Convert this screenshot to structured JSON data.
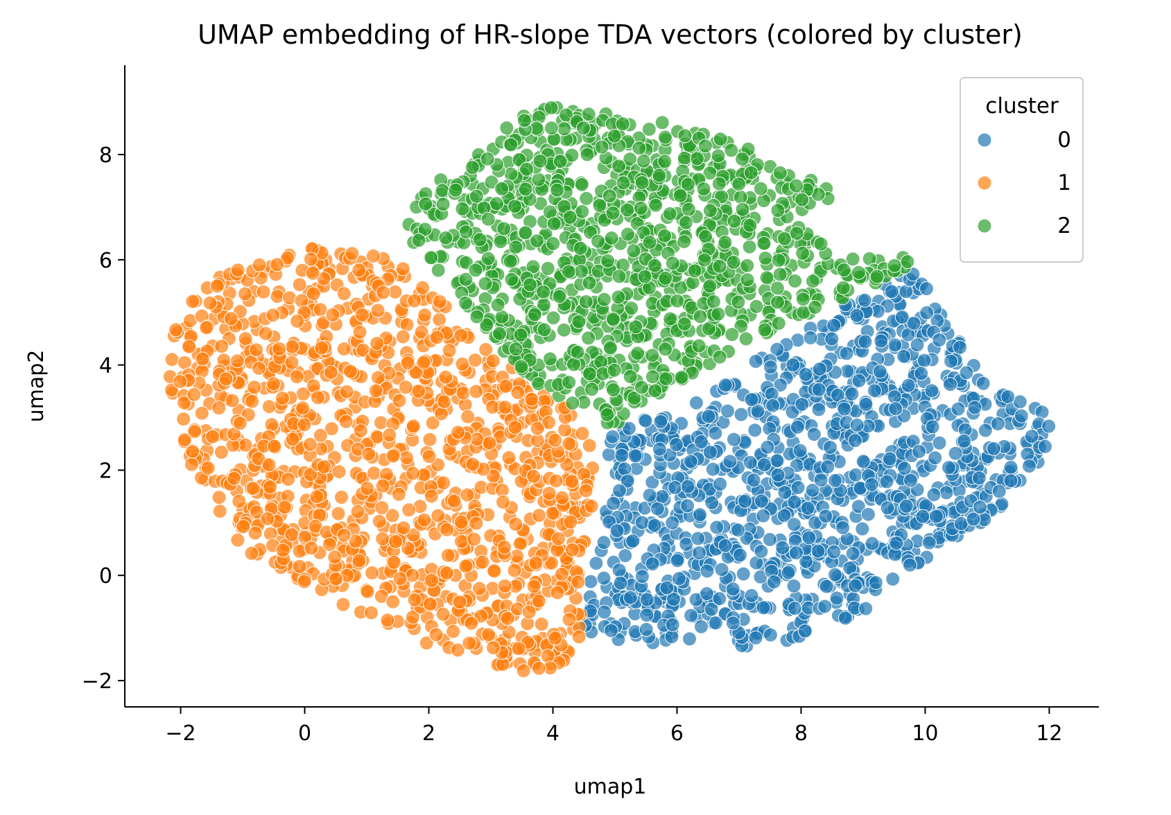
{
  "chart_data": {
    "type": "scatter",
    "title": "UMAP embedding of HR-slope TDA vectors (colored by cluster)",
    "xlabel": "umap1",
    "ylabel": "umap2",
    "xlim": [
      -2.9,
      12.8
    ],
    "ylim": [
      -2.5,
      9.7
    ],
    "xticks": [
      -2,
      0,
      2,
      4,
      6,
      8,
      10,
      12
    ],
    "yticks": [
      -2,
      0,
      2,
      4,
      6,
      8
    ],
    "xtick_labels": [
      "−2",
      "0",
      "2",
      "4",
      "6",
      "8",
      "10",
      "12"
    ],
    "ytick_labels": [
      "−2",
      "0",
      "2",
      "4",
      "6",
      "8"
    ],
    "grid": false,
    "legend": {
      "title": "cluster",
      "placement": "top-right",
      "entries": [
        {
          "label": "0",
          "color": "#1f77b4"
        },
        {
          "label": "1",
          "color": "#ff7f0e"
        },
        {
          "label": "2",
          "color": "#2ca02c"
        }
      ]
    },
    "series": [
      {
        "name": "0",
        "color": "#1f77b4",
        "approx_count": 1100,
        "region": [
          [
            4.7,
            2.8
          ],
          [
            5.2,
            2.9
          ],
          [
            6.2,
            3.2
          ],
          [
            7.0,
            3.9
          ],
          [
            7.6,
            4.3
          ],
          [
            8.3,
            4.9
          ],
          [
            9.3,
            5.6
          ],
          [
            9.8,
            5.9
          ],
          [
            10.3,
            4.9
          ],
          [
            10.8,
            4.0
          ],
          [
            11.4,
            3.4
          ],
          [
            12.1,
            3.0
          ],
          [
            11.8,
            2.0
          ],
          [
            11.3,
            1.3
          ],
          [
            10.5,
            0.7
          ],
          [
            9.6,
            0.0
          ],
          [
            8.9,
            -0.8
          ],
          [
            8.2,
            -1.1
          ],
          [
            7.3,
            -1.4
          ],
          [
            6.4,
            -1.3
          ],
          [
            5.4,
            -1.3
          ],
          [
            4.5,
            -1.1
          ],
          [
            4.6,
            0.0
          ],
          [
            4.8,
            1.0
          ],
          [
            4.9,
            2.0
          ]
        ]
      },
      {
        "name": "1",
        "color": "#ff7f0e",
        "approx_count": 1150,
        "region": [
          [
            -2.2,
            4.6
          ],
          [
            -1.8,
            5.4
          ],
          [
            -1.0,
            5.9
          ],
          [
            0.0,
            6.3
          ],
          [
            1.0,
            6.2
          ],
          [
            1.8,
            5.7
          ],
          [
            2.3,
            5.1
          ],
          [
            2.9,
            4.4
          ],
          [
            3.5,
            3.8
          ],
          [
            4.2,
            3.3
          ],
          [
            4.6,
            2.6
          ],
          [
            4.7,
            1.5
          ],
          [
            4.5,
            0.5
          ],
          [
            4.5,
            -0.6
          ],
          [
            4.4,
            -1.4
          ],
          [
            4.0,
            -1.9
          ],
          [
            3.2,
            -1.8
          ],
          [
            2.3,
            -1.5
          ],
          [
            1.5,
            -1.0
          ],
          [
            0.5,
            -0.5
          ],
          [
            -0.5,
            0.1
          ],
          [
            -1.2,
            0.7
          ],
          [
            -1.8,
            2.0
          ],
          [
            -2.1,
            3.0
          ],
          [
            -2.2,
            3.8
          ]
        ]
      },
      {
        "name": "2",
        "color": "#2ca02c",
        "approx_count": 1000,
        "region": [
          [
            1.6,
            6.7
          ],
          [
            2.0,
            7.4
          ],
          [
            2.7,
            7.9
          ],
          [
            3.5,
            8.8
          ],
          [
            4.2,
            9.0
          ],
          [
            5.2,
            8.8
          ],
          [
            6.2,
            8.5
          ],
          [
            7.0,
            8.2
          ],
          [
            7.7,
            7.8
          ],
          [
            8.5,
            7.3
          ],
          [
            8.2,
            6.6
          ],
          [
            8.6,
            6.0
          ],
          [
            9.6,
            6.2
          ],
          [
            9.8,
            5.8
          ],
          [
            9.3,
            5.6
          ],
          [
            8.4,
            5.1
          ],
          [
            7.6,
            4.6
          ],
          [
            7.0,
            4.3
          ],
          [
            6.2,
            3.7
          ],
          [
            5.5,
            3.3
          ],
          [
            5.0,
            2.8
          ],
          [
            4.2,
            3.3
          ],
          [
            3.5,
            3.8
          ],
          [
            3.0,
            4.6
          ],
          [
            2.4,
            5.4
          ],
          [
            1.8,
            6.1
          ]
        ]
      }
    ]
  }
}
